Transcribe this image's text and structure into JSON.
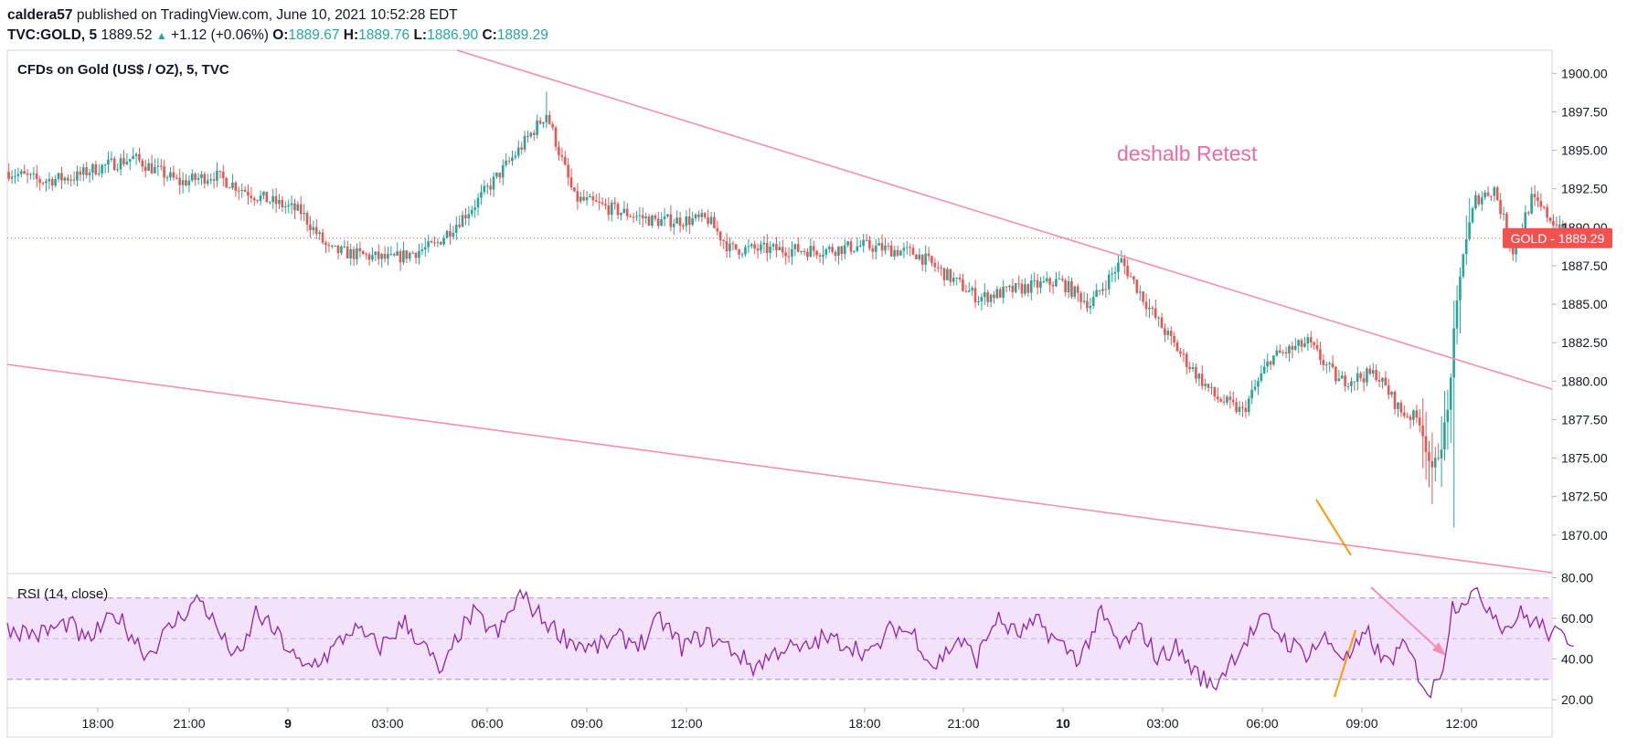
{
  "header": {
    "author": "caldera57",
    "published": "published on TradingView.com, June 10, 2021 10:52:28 EDT",
    "symbol": "TVC:GOLD, 5",
    "last": "1889.52",
    "change": "+1.12 (+0.06%)",
    "o_label": "O:",
    "o": "1889.67",
    "h_label": "H:",
    "h": "1889.76",
    "l_label": "L:",
    "l": "1886.90",
    "c_label": "C:",
    "c": "1889.29"
  },
  "chart_data": [
    {
      "type": "candlestick",
      "title": "CFDs on Gold (US$ / OZ), 5, TVC",
      "annotation": "deshalb Retest",
      "price_label": "GOLD  -  1889.29",
      "current_price": 1889.29,
      "ylim": [
        1867.5,
        1901.5
      ],
      "y_ticks": [
        "1900.00",
        "1897.50",
        "1895.00",
        "1892.50",
        "1890.00",
        "1887.50",
        "1885.00",
        "1882.50",
        "1880.00",
        "1877.50",
        "1875.00",
        "1872.50",
        "1870.00"
      ],
      "x_ticks": [
        {
          "label": "18:00",
          "bold": false
        },
        {
          "label": "21:00",
          "bold": false
        },
        {
          "label": "9",
          "bold": true
        },
        {
          "label": "03:00",
          "bold": false
        },
        {
          "label": "06:00",
          "bold": false
        },
        {
          "label": "09:00",
          "bold": false
        },
        {
          "label": "12:00",
          "bold": false
        },
        {
          "label": "18:00",
          "bold": false
        },
        {
          "label": "21:00",
          "bold": false
        },
        {
          "label": "10",
          "bold": true
        },
        {
          "label": "03:00",
          "bold": false
        },
        {
          "label": "06:00",
          "bold": false
        },
        {
          "label": "09:00",
          "bold": false
        },
        {
          "label": "12:00",
          "bold": false
        }
      ],
      "key_path": [
        [
          0,
          1893.6
        ],
        [
          10,
          1893.0
        ],
        [
          22,
          1893.3
        ],
        [
          26,
          1893.7
        ],
        [
          40,
          1894.5
        ],
        [
          55,
          1892.9
        ],
        [
          66,
          1893.4
        ],
        [
          80,
          1892.0
        ],
        [
          94,
          1891.0
        ],
        [
          103,
          1888.5
        ],
        [
          123,
          1887.9
        ],
        [
          137,
          1888.8
        ],
        [
          150,
          1891.5
        ],
        [
          164,
          1895.0
        ],
        [
          173,
          1897.4
        ],
        [
          182,
          1891.9
        ],
        [
          197,
          1891.0
        ],
        [
          208,
          1890.4
        ],
        [
          225,
          1890.5
        ],
        [
          232,
          1888.6
        ],
        [
          262,
          1888.5
        ],
        [
          275,
          1888.8
        ],
        [
          292,
          1888.3
        ],
        [
          312,
          1885.4
        ],
        [
          325,
          1886.0
        ],
        [
          338,
          1886.5
        ],
        [
          348,
          1885.0
        ],
        [
          358,
          1887.8
        ],
        [
          368,
          1884.4
        ],
        [
          378,
          1881.5
        ],
        [
          388,
          1879.0
        ],
        [
          397,
          1878.0
        ],
        [
          406,
          1881.5
        ],
        [
          418,
          1882.5
        ],
        [
          428,
          1880.0
        ],
        [
          440,
          1880.5
        ],
        [
          448,
          1878.0
        ],
        [
          454,
          1877.5
        ],
        [
          458,
          1874.0
        ],
        [
          461,
          1876.0
        ],
        [
          463,
          1878.0
        ],
        [
          465,
          1883.0
        ],
        [
          468,
          1888.5
        ],
        [
          472,
          1891.8
        ],
        [
          478,
          1892.5
        ],
        [
          484,
          1888.5
        ],
        [
          490,
          1891.8
        ],
        [
          500,
          1889.8
        ],
        [
          504,
          1889.3
        ]
      ]
    },
    {
      "type": "line",
      "title": "RSI (14, close)",
      "ylim": [
        16,
        82
      ],
      "y_ticks": [
        "80.00",
        "60.00",
        "40.00",
        "20.00"
      ],
      "bands": [
        30,
        70
      ],
      "midline": 50,
      "key_path": [
        [
          0,
          55
        ],
        [
          10,
          52
        ],
        [
          20,
          58
        ],
        [
          25,
          48
        ],
        [
          35,
          62
        ],
        [
          45,
          42
        ],
        [
          55,
          60
        ],
        [
          62,
          70
        ],
        [
          70,
          48
        ],
        [
          75,
          40
        ],
        [
          80,
          63
        ],
        [
          88,
          50
        ],
        [
          95,
          35
        ],
        [
          103,
          42
        ],
        [
          111,
          55
        ],
        [
          120,
          46
        ],
        [
          128,
          58
        ],
        [
          135,
          44
        ],
        [
          140,
          32
        ],
        [
          145,
          52
        ],
        [
          150,
          62
        ],
        [
          158,
          52
        ],
        [
          165,
          72
        ],
        [
          172,
          60
        ],
        [
          180,
          50
        ],
        [
          188,
          45
        ],
        [
          197,
          50
        ],
        [
          205,
          48
        ],
        [
          210,
          60
        ],
        [
          217,
          46
        ],
        [
          225,
          52
        ],
        [
          233,
          45
        ],
        [
          240,
          36
        ],
        [
          250,
          46
        ],
        [
          256,
          44
        ],
        [
          262,
          50
        ],
        [
          270,
          48
        ],
        [
          278,
          42
        ],
        [
          285,
          56
        ],
        [
          292,
          52
        ],
        [
          298,
          36
        ],
        [
          306,
          50
        ],
        [
          312,
          40
        ],
        [
          318,
          60
        ],
        [
          325,
          52
        ],
        [
          332,
          58
        ],
        [
          338,
          48
        ],
        [
          345,
          40
        ],
        [
          352,
          62
        ],
        [
          358,
          46
        ],
        [
          365,
          55
        ],
        [
          370,
          40
        ],
        [
          376,
          46
        ],
        [
          382,
          34
        ],
        [
          388,
          26
        ],
        [
          394,
          40
        ],
        [
          400,
          52
        ],
        [
          405,
          60
        ],
        [
          412,
          48
        ],
        [
          418,
          43
        ],
        [
          424,
          50
        ],
        [
          431,
          40
        ],
        [
          438,
          52
        ],
        [
          443,
          38
        ],
        [
          450,
          46
        ],
        [
          455,
          30
        ],
        [
          458,
          22
        ],
        [
          462,
          38
        ],
        [
          465,
          66
        ],
        [
          468,
          69
        ],
        [
          471,
          72
        ],
        [
          474,
          70
        ],
        [
          478,
          64
        ],
        [
          482,
          55
        ],
        [
          487,
          62
        ],
        [
          492,
          58
        ],
        [
          497,
          52
        ],
        [
          503,
          50
        ]
      ]
    }
  ],
  "drawings": {
    "trend_color": "#f48fb1",
    "fib_color": "#ff9800",
    "up_color": "#26a69a",
    "down_color": "#ef5350",
    "rsi_line_color": "#8e24aa",
    "rsi_band_color": "#f3e2fc"
  }
}
